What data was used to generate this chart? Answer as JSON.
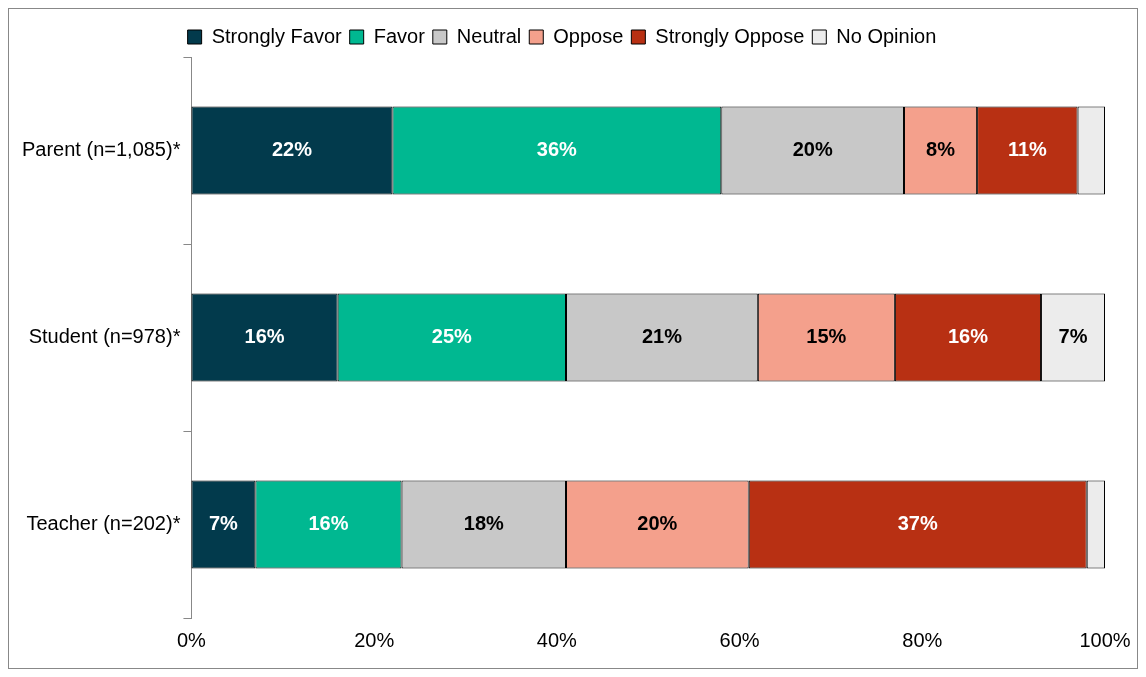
{
  "chart_data": {
    "type": "bar",
    "orientation": "horizontal",
    "stacked": true,
    "categories": [
      "Parent (n=1,085)*",
      "Student (n=978)*",
      "Teacher (n=202)*"
    ],
    "series": [
      {
        "name": "Strongly Favor",
        "color": "#023a4c",
        "values": [
          22,
          16,
          7
        ],
        "value_labels": [
          "22%",
          "16%",
          "7%"
        ]
      },
      {
        "name": "Favor",
        "color": "#00b891",
        "values": [
          36,
          25,
          16
        ],
        "value_labels": [
          "36%",
          "25%",
          "16%"
        ]
      },
      {
        "name": "Neutral",
        "color": "#c8c8c8",
        "values": [
          20,
          21,
          18
        ],
        "value_labels": [
          "20%",
          "21%",
          "18%"
        ]
      },
      {
        "name": "Oppose",
        "color": "#f4a08c",
        "values": [
          8,
          15,
          20
        ],
        "value_labels": [
          "8%",
          "15%",
          "20%"
        ]
      },
      {
        "name": "Strongly Oppose",
        "color": "#b83013",
        "values": [
          11,
          16,
          37
        ],
        "value_labels": [
          "11%",
          "16%",
          "37%"
        ]
      },
      {
        "name": "No Opinion",
        "color": "#ececec",
        "values": [
          3,
          7,
          2
        ],
        "value_labels": [
          null,
          "7%",
          null
        ]
      }
    ],
    "xlim": [
      0,
      100
    ],
    "xticks": [
      {
        "value": 0,
        "label": "0%"
      },
      {
        "value": 20,
        "label": "20%"
      },
      {
        "value": 40,
        "label": "40%"
      },
      {
        "value": 60,
        "label": "60%"
      },
      {
        "value": 80,
        "label": "80%"
      },
      {
        "value": 100,
        "label": "100%"
      }
    ],
    "grid": false,
    "legend": "top"
  }
}
